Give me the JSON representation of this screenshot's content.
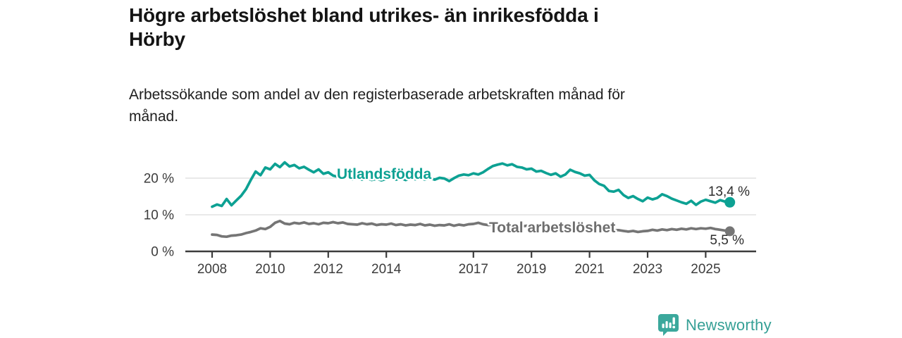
{
  "header": {
    "title": "Högre arbetslöshet bland utrikes- än inrikesfödda i\nHörby",
    "subtitle": "Arbetssökande som andel av den registerbaserade arbetskraften månad för\nmånad."
  },
  "footer": {
    "brand": "Newsworthy",
    "logo_icon": "bar-chart-speech-bubble-icon",
    "brand_color": "#36a096"
  },
  "chart_data": {
    "type": "line",
    "title": "Högre arbetslöshet bland utrikes- än inrikesfödda i Hörby",
    "subtitle": "Arbetssökande som andel av den registerbaserade arbetskraften månad för månad.",
    "grid": "horizontal",
    "legend_position": "inline-labels",
    "x_axis": {
      "tick_years": [
        2008,
        2010,
        2012,
        2014,
        2017,
        2019,
        2021,
        2023,
        2025
      ],
      "tick_labels": [
        "2008",
        "2010",
        "2012",
        "2014",
        "2017",
        "2019",
        "2021",
        "2023",
        "2025"
      ],
      "range_years": [
        2007.1,
        2026.7
      ]
    },
    "y_axis": {
      "ticks": [
        0,
        10,
        20
      ],
      "tick_labels": [
        "0 %",
        "10 %",
        "20 %"
      ],
      "range": [
        0,
        25
      ],
      "unit": "%"
    },
    "series": [
      {
        "name": "Utlandsfödda",
        "color": "#0da193",
        "label_color": "#0da193",
        "end_value": 13.4,
        "label_value": "13,4 %",
        "x_start": 2008,
        "x_step_years": 0.1666667,
        "values": [
          12.2,
          12.8,
          12.4,
          14.3,
          12.6,
          13.9,
          15.2,
          17.0,
          19.5,
          21.8,
          20.8,
          22.9,
          22.4,
          23.9,
          23.0,
          24.3,
          23.2,
          23.6,
          22.7,
          23.1,
          22.3,
          21.6,
          22.4,
          21.2,
          21.6,
          20.7,
          20.4,
          19.9,
          20.3,
          19.7,
          20.1,
          19.6,
          20.0,
          19.5,
          19.8,
          19.4,
          19.8,
          20.2,
          19.6,
          20.0,
          19.5,
          19.9,
          19.7,
          20.1,
          19.6,
          20.0,
          19.6,
          20.1,
          19.9,
          19.2,
          20.0,
          20.7,
          21.0,
          20.8,
          21.3,
          21.0,
          21.6,
          22.5,
          23.3,
          23.7,
          24.0,
          23.5,
          23.8,
          23.1,
          22.9,
          22.4,
          22.6,
          21.8,
          22.0,
          21.4,
          20.9,
          21.3,
          20.4,
          21.0,
          22.3,
          21.7,
          21.3,
          20.7,
          20.9,
          19.4,
          18.4,
          17.9,
          16.5,
          16.3,
          16.8,
          15.4,
          14.6,
          15.1,
          14.3,
          13.7,
          14.7,
          14.2,
          14.6,
          15.6,
          15.1,
          14.4,
          13.9,
          13.4,
          13.0,
          13.8,
          12.7,
          13.6,
          14.1,
          13.7,
          13.3,
          14.0,
          13.6,
          13.4
        ]
      },
      {
        "name": "Total arbetslöshet",
        "color": "#757575",
        "label_color": "#6e6e6e",
        "end_value": 5.5,
        "label_value": "5,5 %",
        "x_start": 2008,
        "x_step_years": 0.1666667,
        "values": [
          4.6,
          4.5,
          4.1,
          4.0,
          4.3,
          4.4,
          4.6,
          5.0,
          5.3,
          5.7,
          6.3,
          6.1,
          6.7,
          7.8,
          8.3,
          7.6,
          7.4,
          7.8,
          7.6,
          7.9,
          7.5,
          7.7,
          7.4,
          7.8,
          7.7,
          8.0,
          7.7,
          7.9,
          7.5,
          7.4,
          7.3,
          7.7,
          7.4,
          7.6,
          7.2,
          7.4,
          7.3,
          7.6,
          7.2,
          7.4,
          7.1,
          7.3,
          7.2,
          7.5,
          7.1,
          7.3,
          7.0,
          7.2,
          7.1,
          7.4,
          7.0,
          7.3,
          7.1,
          7.4,
          7.5,
          7.8,
          7.4,
          7.2,
          7.3,
          7.1,
          7.0,
          7.2,
          6.9,
          7.1,
          6.8,
          7.0,
          6.9,
          7.1,
          6.8,
          7.0,
          6.7,
          6.9,
          6.8,
          7.1,
          7.4,
          7.2,
          7.0,
          6.8,
          6.7,
          6.5,
          6.3,
          6.1,
          5.9,
          5.8,
          5.8,
          5.6,
          5.4,
          5.6,
          5.3,
          5.5,
          5.6,
          5.9,
          5.7,
          6.0,
          5.8,
          6.1,
          5.9,
          6.2,
          6.0,
          6.3,
          6.1,
          6.3,
          6.2,
          6.4,
          6.1,
          5.9,
          5.7,
          5.5
        ]
      }
    ],
    "colors": {
      "axis": "#3c3c3c",
      "grid": "#dcdcdc",
      "value_label": "#2d2d2d"
    }
  }
}
